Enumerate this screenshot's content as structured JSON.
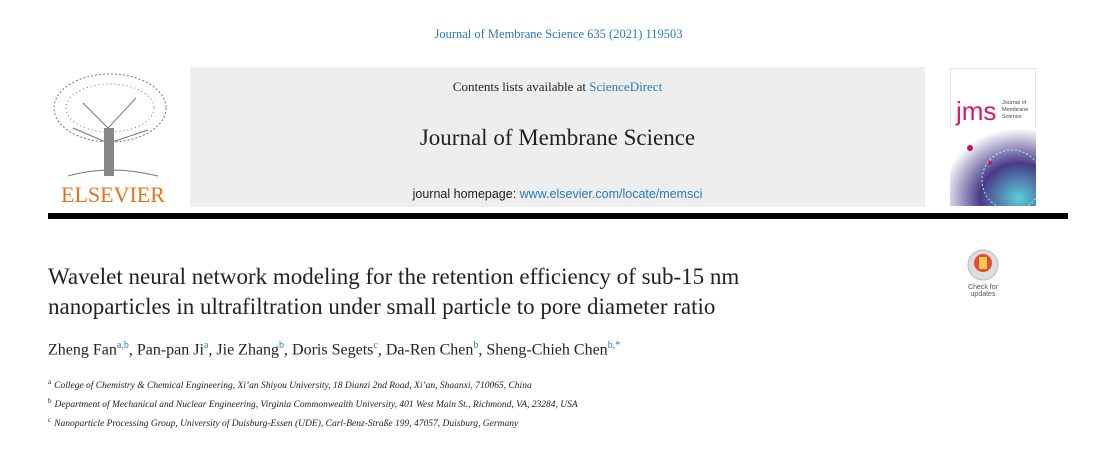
{
  "journal_ref": "Journal of Membrane Science 635 (2021) 119503",
  "header": {
    "contents_prefix": "Contents lists available at ",
    "contents_link": "ScienceDirect",
    "journal_title": "Journal of Membrane Science",
    "homepage_prefix": "journal homepage: ",
    "homepage_link": "www.elsevier.com/locate/memsci"
  },
  "publisher": "ELSEVIER",
  "cover": {
    "abbrev": "jms",
    "name": [
      "Journal of",
      "Membrane",
      "Science"
    ]
  },
  "badge": "Check for updates",
  "title": [
    "Wavelet neural network modeling for the retention efficiency of sub-15 nm",
    "nanoparticles in ultrafiltration under small particle to pore diameter ratio"
  ],
  "separator": ", ",
  "authors": [
    {
      "name": "Zheng Fan",
      "sup": "a,b"
    },
    {
      "name": "Pan-pan Ji",
      "sup": "a"
    },
    {
      "name": "Jie Zhang",
      "sup": "b"
    },
    {
      "name": "Doris Segets",
      "sup": "c"
    },
    {
      "name": "Da-Ren Chen",
      "sup": "b"
    },
    {
      "name": "Sheng-Chieh Chen",
      "sup": "b,*"
    }
  ],
  "affiliations": [
    {
      "label": "a",
      "text": "College of Chemistry & Chemical Engineering, Xi’an Shiyou University, 18 Dianzi 2nd Road, Xi’an, Shaanxi, 710065, China"
    },
    {
      "label": "b",
      "text": "Department of Mechanical and Nuclear Engineering, Virginia Commonwealth University, 401 West Main St., Richmond, VA, 23284, USA"
    },
    {
      "label": "c",
      "text": "Nanoparticle Processing Group, University of Duisburg-Essen (UDE), Carl-Benz-Straße 199, 47057, Duisburg, Germany"
    }
  ]
}
